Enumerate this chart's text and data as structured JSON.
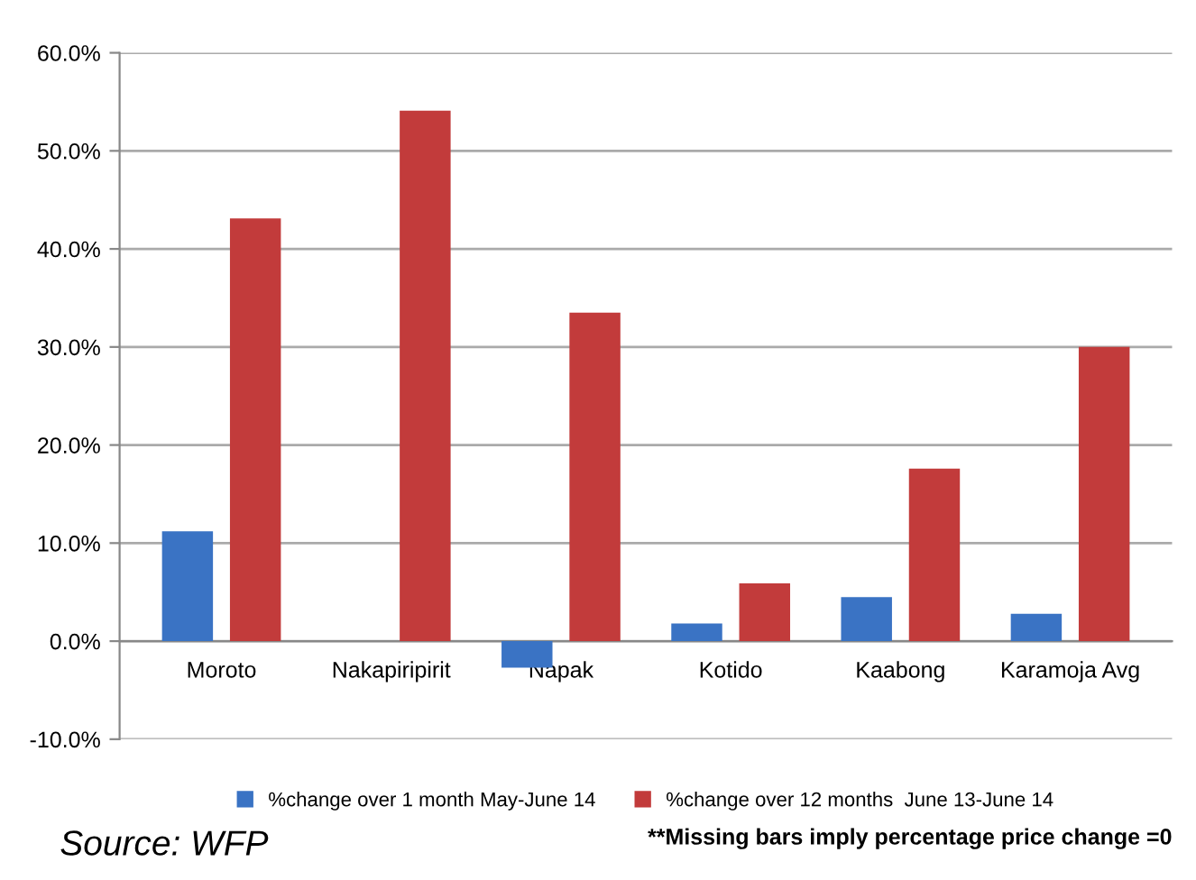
{
  "chart_data": {
    "type": "bar",
    "categories": [
      "Moroto",
      "Nakapiripirit",
      "Napak",
      "Kotido",
      "Kaabong",
      "Karamoja Avg"
    ],
    "series": [
      {
        "name": "%change over 1 month May-June 14",
        "color": "#3a73c4",
        "values": [
          11.2,
          0,
          -2.7,
          1.8,
          4.5,
          2.8
        ]
      },
      {
        "name": "%change over 12 months  June 13-June 14",
        "color": "#c23b3b",
        "values": [
          43.1,
          54.1,
          33.5,
          5.9,
          17.6,
          30.0
        ]
      }
    ],
    "ylim": [
      -10,
      60
    ],
    "yticks": [
      {
        "value": -10,
        "label": "-10.0%"
      },
      {
        "value": 0,
        "label": "0.0%"
      },
      {
        "value": 10,
        "label": "10.0%"
      },
      {
        "value": 20,
        "label": "20.0%"
      },
      {
        "value": 30,
        "label": "30.0%"
      },
      {
        "value": 40,
        "label": "40.0%"
      },
      {
        "value": 50,
        "label": "50.0%"
      },
      {
        "value": 60,
        "label": "60.0%"
      }
    ],
    "grid": "y",
    "legend": "bottom",
    "annotations": [
      "Source: WFP",
      "**Missing bars imply percentage price change =0"
    ]
  }
}
